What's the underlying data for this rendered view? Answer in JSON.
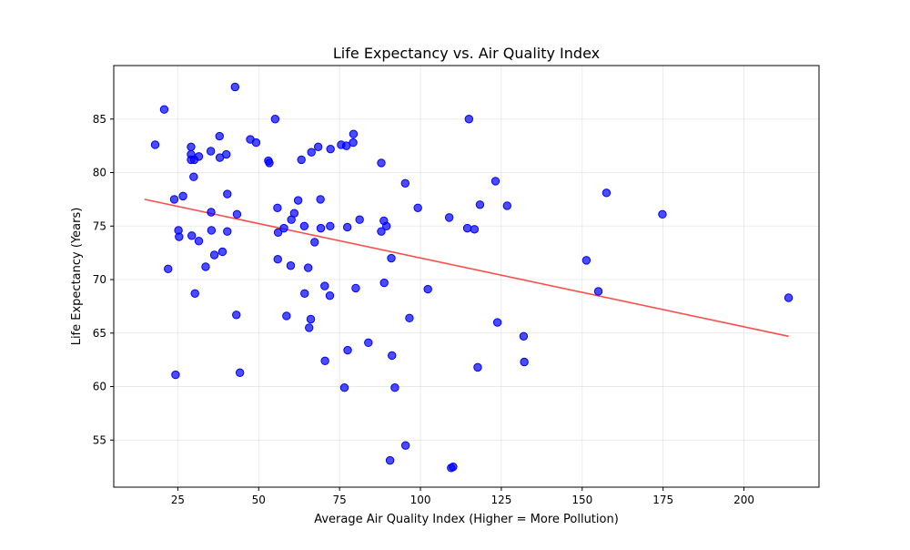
{
  "chart_data": {
    "type": "scatter",
    "title": "Life Expectancy vs. Air Quality Index",
    "xlabel": "Average Air Quality Index (Higher = More Pollution)",
    "ylabel": "Life Expectancy (Years)",
    "xlim": [
      5.2,
      223.2
    ],
    "ylim": [
      50.6,
      90.0
    ],
    "xticks": [
      25,
      50,
      75,
      100,
      125,
      150,
      175,
      200
    ],
    "yticks": [
      55,
      60,
      65,
      70,
      75,
      80,
      85
    ],
    "grid": true,
    "point_color": "#0000ff",
    "trend_color": "#ff0000",
    "trendline": {
      "x": [
        14.7,
        213.8
      ],
      "y": [
        77.5,
        64.7
      ]
    },
    "points": [
      [
        42.7,
        88.0
      ],
      [
        20.8,
        85.9
      ],
      [
        55.1,
        85.0
      ],
      [
        115.0,
        85.0
      ],
      [
        18.0,
        82.6
      ],
      [
        47.4,
        83.1
      ],
      [
        49.2,
        82.8
      ],
      [
        37.9,
        83.4
      ],
      [
        29.1,
        82.4
      ],
      [
        35.2,
        82.0
      ],
      [
        29.1,
        81.7
      ],
      [
        31.5,
        81.5
      ],
      [
        38.0,
        81.4
      ],
      [
        40.0,
        81.7
      ],
      [
        29.1,
        81.2
      ],
      [
        30.1,
        81.2
      ],
      [
        53.0,
        81.1
      ],
      [
        53.3,
        80.9
      ],
      [
        29.9,
        79.6
      ],
      [
        63.2,
        81.2
      ],
      [
        66.3,
        81.9
      ],
      [
        68.4,
        82.4
      ],
      [
        72.2,
        82.2
      ],
      [
        75.5,
        82.6
      ],
      [
        77.1,
        82.5
      ],
      [
        79.2,
        82.8
      ],
      [
        79.3,
        83.6
      ],
      [
        87.9,
        80.9
      ],
      [
        95.3,
        79.0
      ],
      [
        26.6,
        77.8
      ],
      [
        23.9,
        77.5
      ],
      [
        35.3,
        76.3
      ],
      [
        40.3,
        78.0
      ],
      [
        43.3,
        76.1
      ],
      [
        55.8,
        76.7
      ],
      [
        60.1,
        75.6
      ],
      [
        61.0,
        76.2
      ],
      [
        62.2,
        77.4
      ],
      [
        69.1,
        77.5
      ],
      [
        99.2,
        76.7
      ],
      [
        118.4,
        77.0
      ],
      [
        123.2,
        79.2
      ],
      [
        126.8,
        76.9
      ],
      [
        157.5,
        78.1
      ],
      [
        174.8,
        76.1
      ],
      [
        25.2,
        74.6
      ],
      [
        25.4,
        74.0
      ],
      [
        29.3,
        74.1
      ],
      [
        31.5,
        73.6
      ],
      [
        35.4,
        74.6
      ],
      [
        40.3,
        74.5
      ],
      [
        36.3,
        72.3
      ],
      [
        38.8,
        72.6
      ],
      [
        33.6,
        71.2
      ],
      [
        56.0,
        74.4
      ],
      [
        57.8,
        74.8
      ],
      [
        64.1,
        75.0
      ],
      [
        69.2,
        74.8
      ],
      [
        72.1,
        75.0
      ],
      [
        77.4,
        74.9
      ],
      [
        81.2,
        75.6
      ],
      [
        87.9,
        74.5
      ],
      [
        88.7,
        75.5
      ],
      [
        89.5,
        75.0
      ],
      [
        108.9,
        75.8
      ],
      [
        114.5,
        74.8
      ],
      [
        116.7,
        74.7
      ],
      [
        67.3,
        73.5
      ],
      [
        55.9,
        71.9
      ],
      [
        59.9,
        71.3
      ],
      [
        65.3,
        71.1
      ],
      [
        91.0,
        72.0
      ],
      [
        151.3,
        71.8
      ],
      [
        22.0,
        71.0
      ],
      [
        30.3,
        68.7
      ],
      [
        64.2,
        68.7
      ],
      [
        70.4,
        69.4
      ],
      [
        72.0,
        68.5
      ],
      [
        80.0,
        69.2
      ],
      [
        88.8,
        69.7
      ],
      [
        102.3,
        69.1
      ],
      [
        155.0,
        68.9
      ],
      [
        213.8,
        68.3
      ],
      [
        43.1,
        66.7
      ],
      [
        58.6,
        66.6
      ],
      [
        66.1,
        66.3
      ],
      [
        65.6,
        65.5
      ],
      [
        96.6,
        66.4
      ],
      [
        123.8,
        66.0
      ],
      [
        131.9,
        64.7
      ],
      [
        77.5,
        63.4
      ],
      [
        83.9,
        64.1
      ],
      [
        70.5,
        62.4
      ],
      [
        91.2,
        62.9
      ],
      [
        117.7,
        61.8
      ],
      [
        132.1,
        62.3
      ],
      [
        24.3,
        61.1
      ],
      [
        44.2,
        61.3
      ],
      [
        76.5,
        59.9
      ],
      [
        92.1,
        59.9
      ],
      [
        95.4,
        54.5
      ],
      [
        90.6,
        53.1
      ],
      [
        109.5,
        52.4
      ],
      [
        110.1,
        52.5
      ]
    ]
  }
}
